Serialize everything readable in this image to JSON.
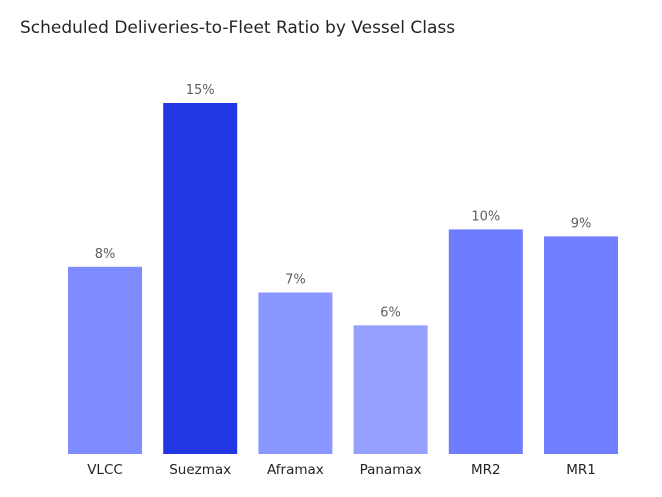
{
  "chart_data": {
    "type": "bar",
    "title": "Scheduled Deliveries-to-Fleet Ratio by Vessel Class",
    "xlabel": "",
    "ylabel": "",
    "categories": [
      "VLCC",
      "Suezmax",
      "Aframax",
      "Panamax",
      "MR2",
      "MR1"
    ],
    "values": [
      8.0,
      15.0,
      6.9,
      5.5,
      9.6,
      9.3
    ],
    "data_labels": [
      "8%",
      "15%",
      "7%",
      "6%",
      "10%",
      "9%"
    ],
    "colors": [
      "#7f8cff",
      "#2137e3",
      "#8a96ff",
      "#96a1ff",
      "#6e7cff",
      "#717eff"
    ],
    "ylim": [
      0,
      15
    ],
    "grid": false,
    "unit": "%"
  }
}
